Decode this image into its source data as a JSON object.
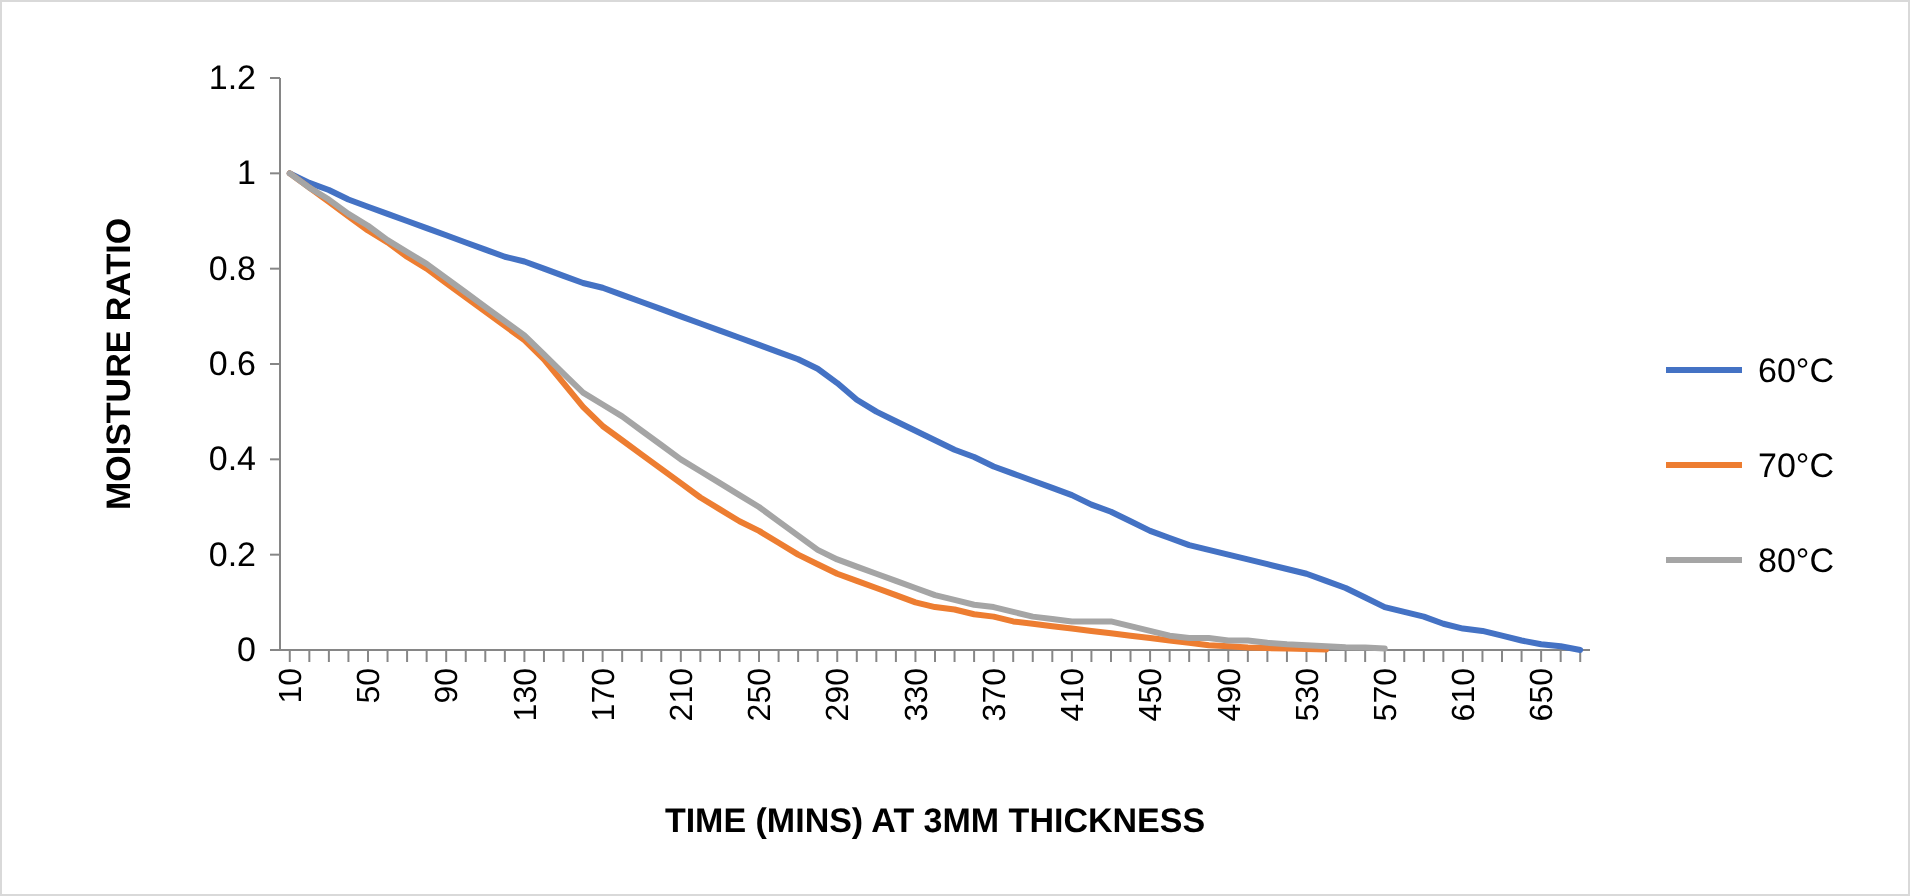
{
  "chart_data": {
    "type": "line",
    "xlabel": "TIME (MINS) AT 3MM THICKNESS",
    "ylabel": "MOISTURE RATIO",
    "categories": [
      "10",
      null,
      null,
      null,
      "50",
      null,
      null,
      null,
      "90",
      null,
      null,
      null,
      "130",
      null,
      null,
      null,
      "170",
      null,
      null,
      null,
      "210",
      null,
      null,
      null,
      "250",
      null,
      null,
      null,
      "290",
      null,
      null,
      null,
      "330",
      null,
      null,
      null,
      "370",
      null,
      null,
      null,
      "410",
      null,
      null,
      null,
      "450",
      null,
      null,
      null,
      "490",
      null,
      null,
      null,
      "530",
      null,
      null,
      null,
      "570",
      null,
      null,
      null,
      "610",
      null,
      null,
      null,
      "650",
      null,
      null
    ],
    "ylim": [
      0,
      1.2
    ],
    "yticks": [
      0,
      0.2,
      0.4,
      0.6,
      0.8,
      1,
      1.2
    ],
    "grid": false,
    "legend": "right",
    "marker": "none",
    "line_style": "solid",
    "series": [
      {
        "name": "60°C",
        "color": "#4472c4",
        "values": [
          1,
          0.98,
          0.965,
          0.945,
          0.93,
          0.915,
          0.9,
          0.885,
          0.87,
          0.855,
          0.84,
          0.825,
          0.815,
          0.8,
          0.785,
          0.77,
          0.76,
          0.745,
          0.73,
          0.715,
          0.7,
          0.685,
          0.67,
          0.655,
          0.64,
          0.625,
          0.61,
          0.59,
          0.56,
          0.525,
          0.5,
          0.48,
          0.46,
          0.44,
          0.42,
          0.405,
          0.385,
          0.37,
          0.355,
          0.34,
          0.325,
          0.305,
          0.29,
          0.27,
          0.25,
          0.235,
          0.22,
          0.21,
          0.2,
          0.19,
          0.18,
          0.17,
          0.16,
          0.145,
          0.13,
          0.11,
          0.09,
          0.08,
          0.07,
          0.055,
          0.045,
          0.04,
          0.03,
          0.02,
          0.012,
          0.008,
          0
        ]
      },
      {
        "name": "70°C",
        "color": "#ed7d31",
        "values": [
          1,
          0.97,
          0.94,
          0.91,
          0.88,
          0.855,
          0.825,
          0.8,
          0.77,
          0.74,
          0.71,
          0.68,
          0.65,
          0.61,
          0.56,
          0.51,
          0.47,
          0.44,
          0.41,
          0.38,
          0.35,
          0.32,
          0.295,
          0.27,
          0.25,
          0.225,
          0.2,
          0.18,
          0.16,
          0.145,
          0.13,
          0.115,
          0.1,
          0.09,
          0.085,
          0.075,
          0.07,
          0.06,
          0.055,
          0.05,
          0.045,
          0.04,
          0.035,
          0.03,
          0.025,
          0.02,
          0.015,
          0.01,
          0.008,
          0.005,
          0.004,
          0.003,
          0.002,
          0.001,
          null,
          null,
          null,
          null,
          null,
          null,
          null,
          null,
          null,
          null,
          null,
          null,
          null
        ]
      },
      {
        "name": "80°C",
        "color": "#a5a5a5",
        "values": [
          1,
          0.97,
          0.945,
          0.915,
          0.89,
          0.86,
          0.835,
          0.81,
          0.78,
          0.75,
          0.72,
          0.69,
          0.66,
          0.62,
          0.58,
          0.54,
          0.515,
          0.49,
          0.46,
          0.43,
          0.4,
          0.375,
          0.35,
          0.325,
          0.3,
          0.27,
          0.24,
          0.21,
          0.19,
          0.175,
          0.16,
          0.145,
          0.13,
          0.115,
          0.105,
          0.095,
          0.09,
          0.08,
          0.07,
          0.065,
          0.06,
          0.06,
          0.06,
          0.05,
          0.04,
          0.03,
          0.025,
          0.025,
          0.02,
          0.02,
          0.015,
          0.012,
          0.01,
          0.008,
          0.006,
          0.005,
          0.003,
          null,
          null,
          null,
          null,
          null,
          null,
          null,
          null,
          null,
          null
        ]
      }
    ]
  }
}
